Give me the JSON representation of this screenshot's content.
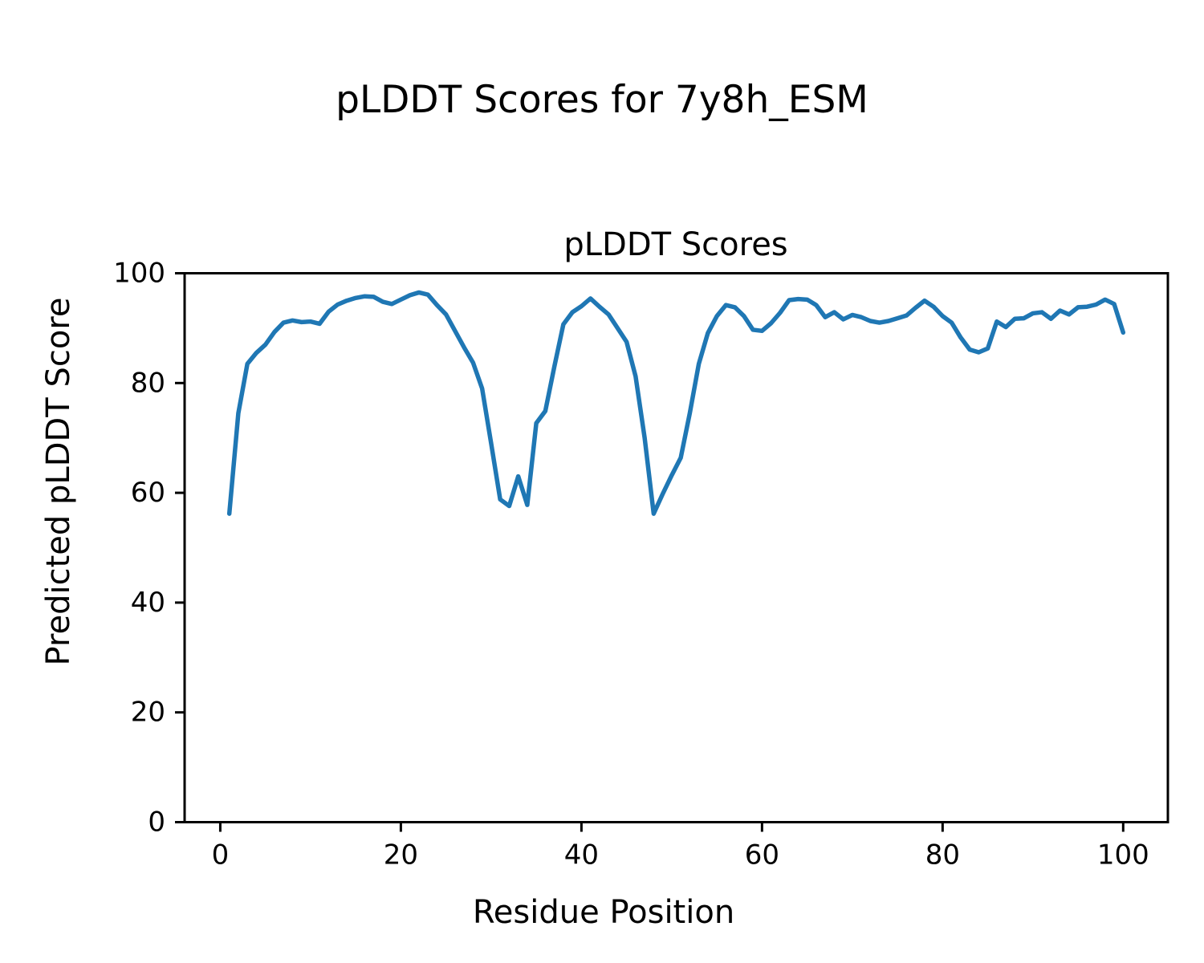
{
  "figure": {
    "title": "pLDDT Scores for 7y8h_ESM"
  },
  "chart_data": {
    "type": "line",
    "title": "pLDDT Scores",
    "xlabel": "Residue Position",
    "ylabel": "Predicted pLDDT Score",
    "xlim": [
      -3.95,
      104.95
    ],
    "ylim": [
      0,
      100
    ],
    "xticks": [
      0,
      20,
      40,
      60,
      80,
      100
    ],
    "yticks": [
      0,
      20,
      40,
      60,
      80,
      100
    ],
    "grid": false,
    "legend": "none",
    "line_color": "#1f77b4",
    "series": [
      {
        "name": "pLDDT",
        "x": [
          1,
          2,
          3,
          4,
          5,
          6,
          7,
          8,
          9,
          10,
          11,
          12,
          13,
          14,
          15,
          16,
          17,
          18,
          19,
          20,
          21,
          22,
          23,
          24,
          25,
          26,
          27,
          28,
          29,
          30,
          31,
          32,
          33,
          34,
          35,
          36,
          37,
          38,
          39,
          40,
          41,
          42,
          43,
          44,
          45,
          46,
          47,
          48,
          49,
          50,
          51,
          52,
          53,
          54,
          55,
          56,
          57,
          58,
          59,
          60,
          61,
          62,
          63,
          64,
          65,
          66,
          67,
          68,
          69,
          70,
          71,
          72,
          73,
          74,
          75,
          76,
          77,
          78,
          79,
          80,
          81,
          82,
          83,
          84,
          85,
          86,
          87,
          88,
          89,
          90,
          91,
          92,
          93,
          94,
          95,
          96,
          97,
          98,
          99,
          100
        ],
        "values": [
          56.2,
          74.5,
          83.5,
          85.5,
          87.0,
          89.3,
          91.0,
          91.4,
          91.1,
          91.2,
          90.8,
          93.0,
          94.3,
          95.0,
          95.5,
          95.8,
          95.7,
          94.8,
          94.4,
          95.2,
          96.0,
          96.5,
          96.1,
          94.2,
          92.5,
          89.5,
          86.5,
          83.7,
          79.0,
          69.0,
          58.8,
          57.6,
          63.0,
          57.8,
          72.7,
          74.9,
          83.0,
          90.7,
          92.9,
          94.0,
          95.4,
          93.9,
          92.5,
          90.0,
          87.5,
          81.2,
          70.0,
          56.2,
          59.8,
          63.2,
          66.4,
          74.5,
          83.5,
          89.1,
          92.2,
          94.2,
          93.8,
          92.2,
          89.7,
          89.5,
          90.9,
          92.8,
          95.1,
          95.3,
          95.2,
          94.2,
          92.0,
          92.9,
          91.6,
          92.4,
          92.0,
          91.3,
          91.0,
          91.3,
          91.8,
          92.3,
          93.7,
          95.0,
          93.9,
          92.2,
          91.0,
          88.3,
          86.1,
          85.6,
          86.3,
          91.2,
          90.2,
          91.7,
          91.8,
          92.7,
          92.9,
          91.7,
          93.2,
          92.5,
          93.8,
          93.9,
          94.3,
          95.2,
          94.4,
          89.2
        ]
      }
    ]
  }
}
